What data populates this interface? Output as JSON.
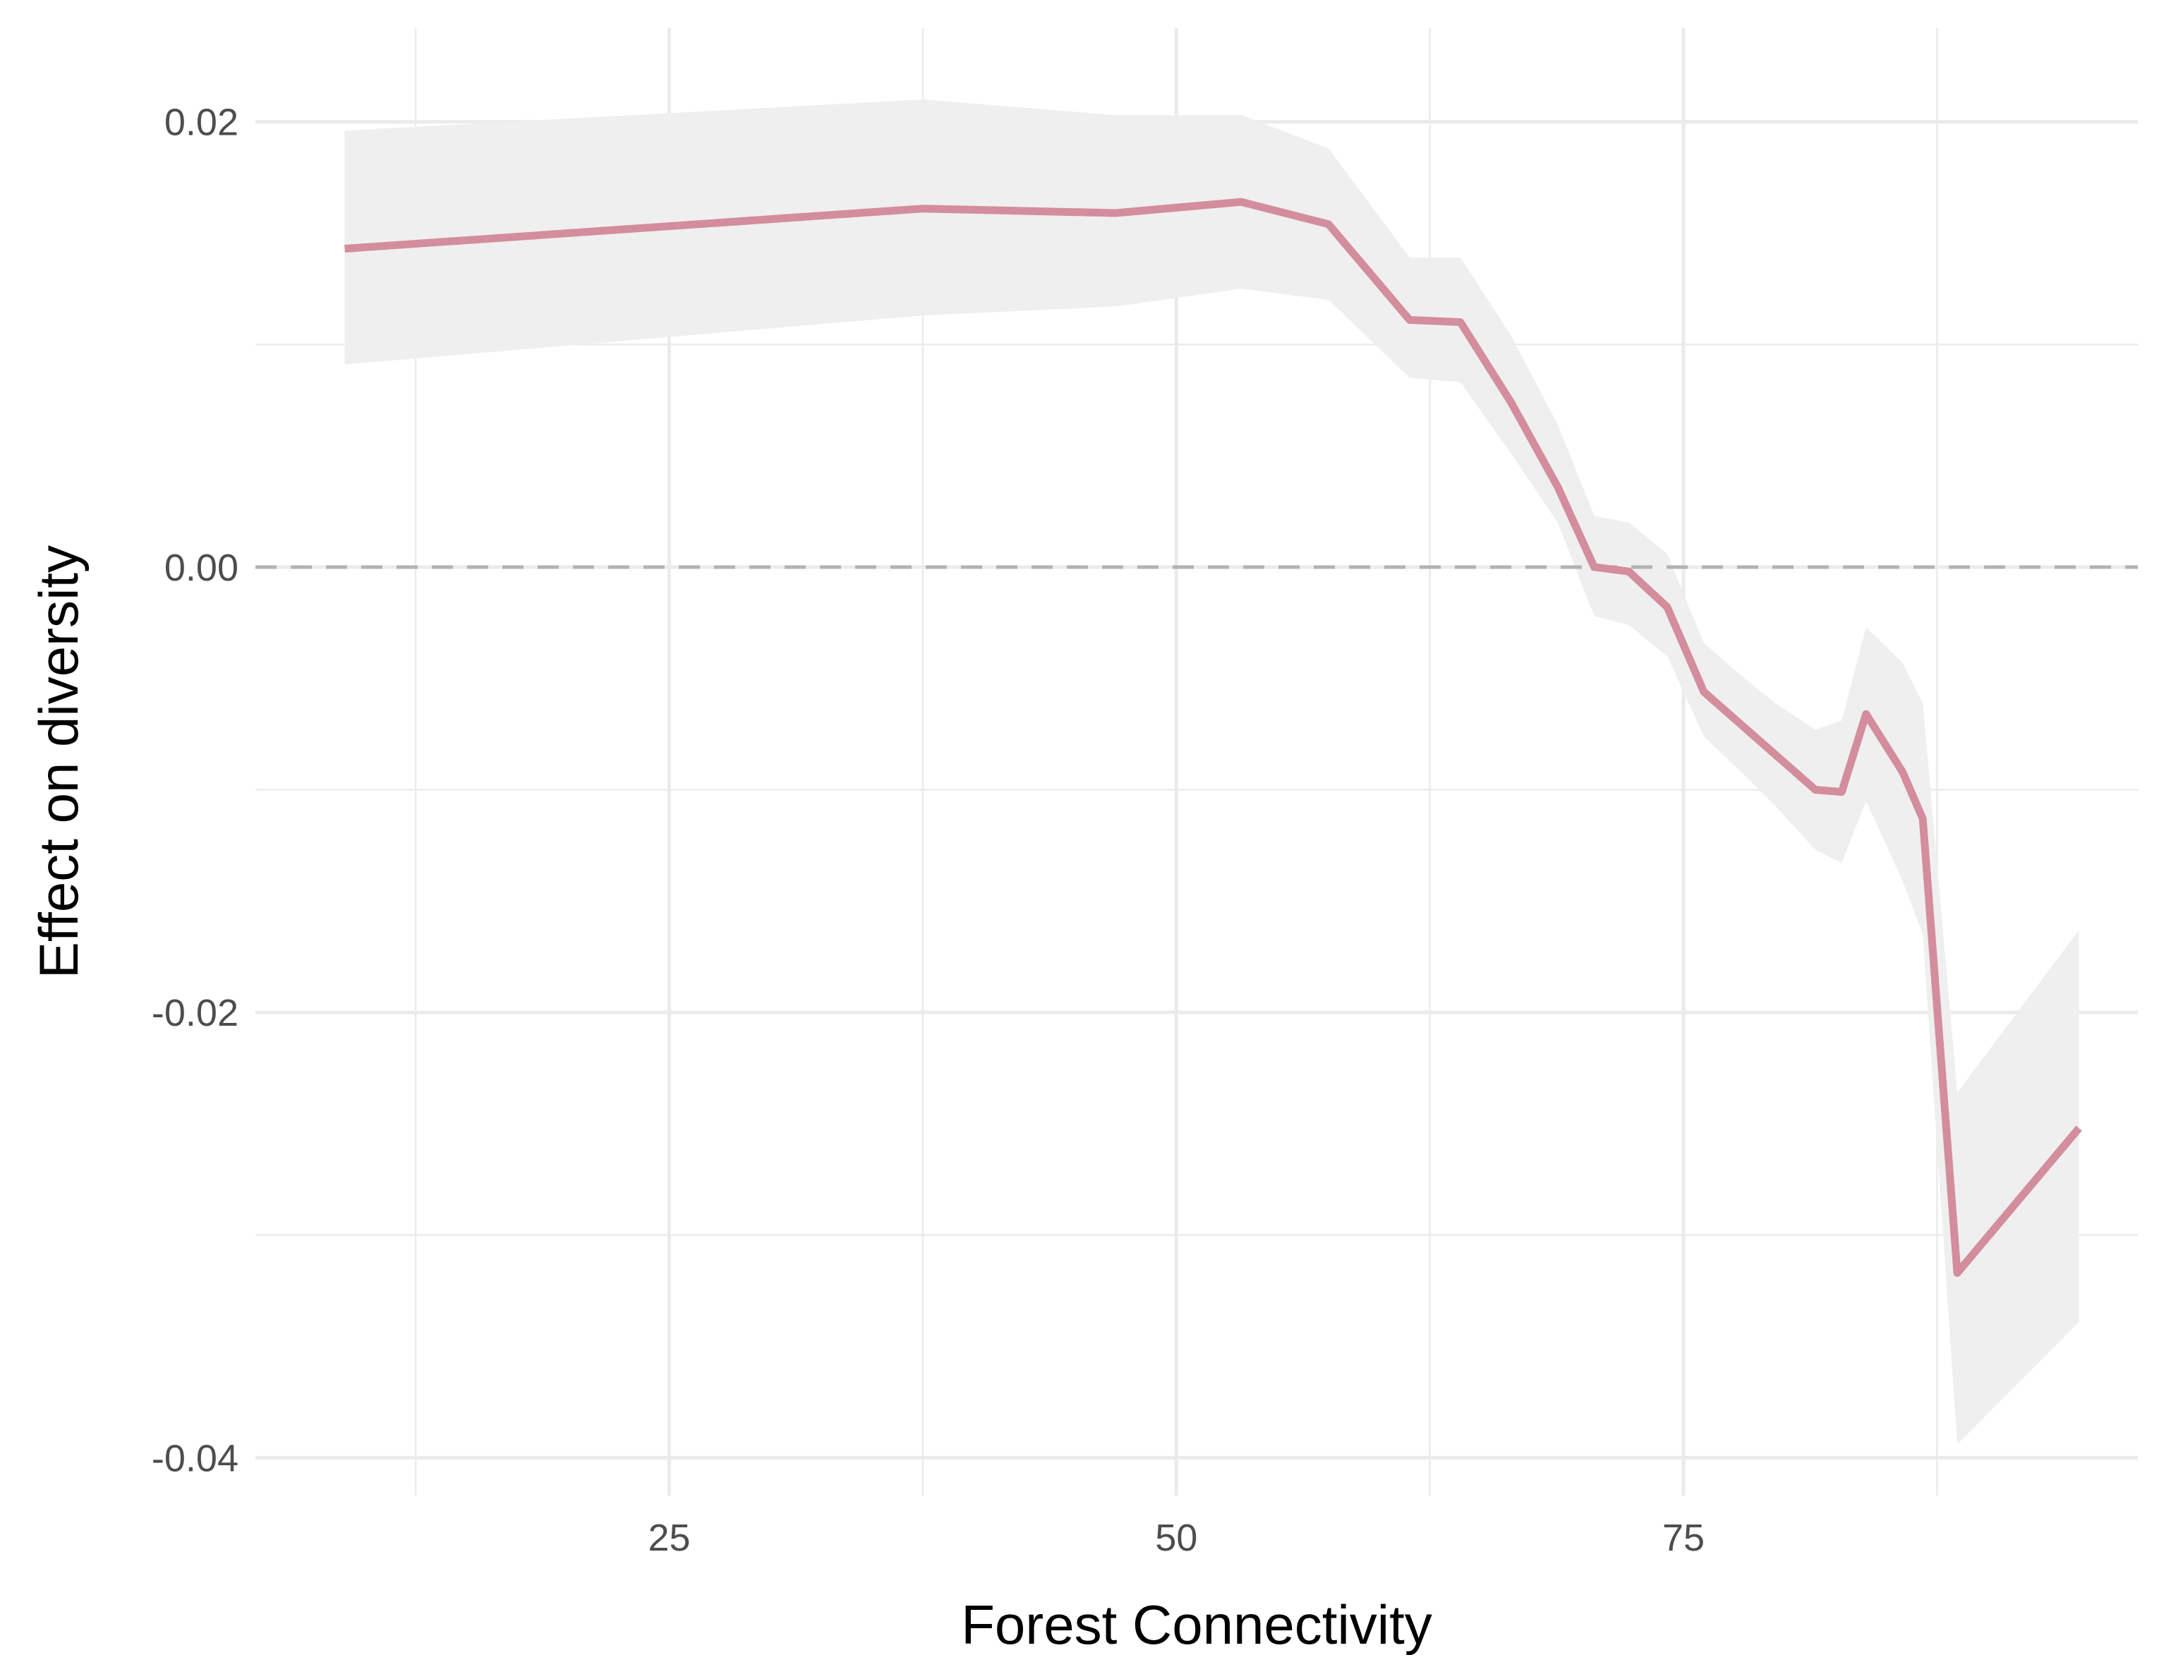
{
  "chart_data": {
    "type": "line",
    "title": "",
    "xlabel": "Forest Connectivity",
    "ylabel": "Effect on diversity",
    "xlim": [
      4.6,
      97.4
    ],
    "ylim": [
      -0.0417,
      0.0242
    ],
    "x_ticks": [
      25,
      50,
      75
    ],
    "x_tick_labels": [
      "25",
      "50",
      "75"
    ],
    "x_minor_ticks": [
      12.5,
      37.5,
      62.5,
      87.5
    ],
    "y_ticks": [
      0.02,
      0.0,
      -0.02,
      -0.04
    ],
    "y_tick_labels": [
      "0.02",
      "0.00",
      "-0.02",
      "-0.04"
    ],
    "y_minor_ticks": [
      0.01,
      -0.01,
      -0.03
    ],
    "grid": true,
    "reference_line": {
      "y": 0.0,
      "style": "dashed"
    },
    "series": [
      {
        "x": [
          9.0,
          37.5,
          47.0,
          53.2,
          57.5,
          61.5,
          64.0,
          66.5,
          68.8,
          70.6,
          72.3,
          74.2,
          76.0,
          77.5,
          79.5,
          81.5,
          82.8,
          84.0,
          85.8,
          86.8,
          88.5,
          94.5
        ],
        "y": [
          0.0143,
          0.0161,
          0.0159,
          0.0164,
          0.0154,
          0.0111,
          0.011,
          0.0074,
          0.0036,
          0.0,
          -0.0002,
          -0.0018,
          -0.0056,
          -0.0068,
          -0.0084,
          -0.01,
          -0.0101,
          -0.0066,
          -0.0092,
          -0.0113,
          -0.0317,
          -0.0252
        ],
        "lower": [
          0.0091,
          0.0113,
          0.0117,
          0.0125,
          0.012,
          0.0085,
          0.0083,
          0.0051,
          0.002,
          -0.0022,
          -0.0026,
          -0.004,
          -0.0076,
          -0.0089,
          -0.0107,
          -0.0127,
          -0.0133,
          -0.0105,
          -0.0141,
          -0.0165,
          -0.0394,
          -0.0339
        ],
        "upper": [
          0.0196,
          0.021,
          0.0203,
          0.0203,
          0.0188,
          0.0139,
          0.0139,
          0.0104,
          0.0064,
          0.0023,
          0.002,
          0.0006,
          -0.0034,
          -0.0046,
          -0.0061,
          -0.0073,
          -0.0069,
          -0.0027,
          -0.0043,
          -0.0061,
          -0.0236,
          -0.0163
        ]
      }
    ],
    "colors": {
      "line": "#d38d9c",
      "ribbon": "#efefef",
      "grid": "#ebebeb",
      "reference": "#b3b3b3",
      "tick_text": "#4d4d4d",
      "axis_title": "#000000"
    }
  }
}
